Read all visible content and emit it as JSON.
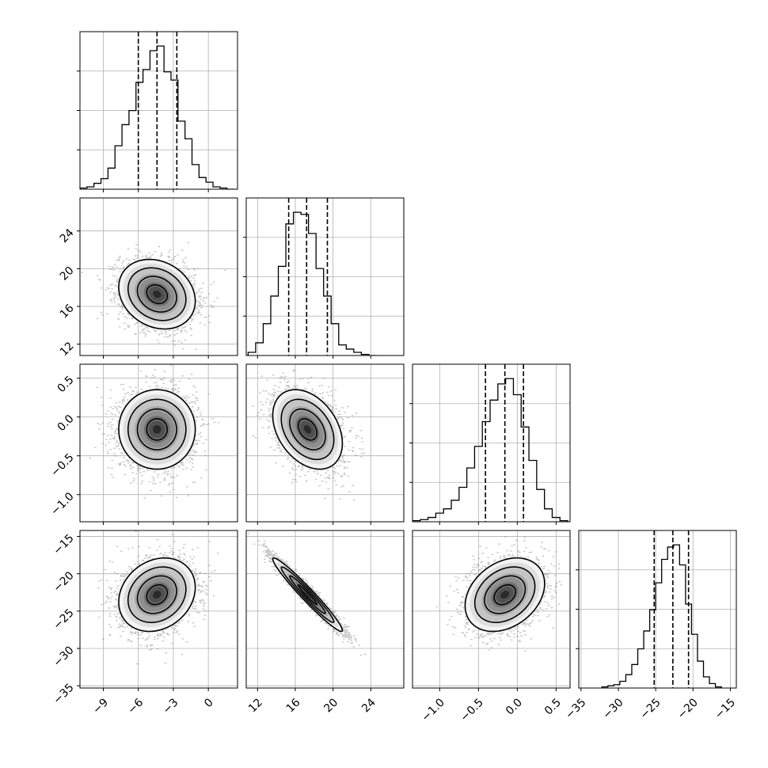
{
  "chart_data": {
    "type": "corner",
    "dims": 4,
    "grid": true,
    "axes": [
      {
        "range": [
          -11,
          2.5
        ],
        "ticks": [
          -9,
          -6,
          -3,
          0
        ],
        "tick_labels": [
          "−9",
          "−6",
          "−3",
          "0"
        ]
      },
      {
        "range": [
          10.8,
          27.5
        ],
        "ticks": [
          12,
          16,
          20,
          24
        ],
        "tick_labels": [
          "12",
          "16",
          "20",
          "24"
        ]
      },
      {
        "range": [
          -1.35,
          0.68
        ],
        "ticks": [
          -1.0,
          -0.5,
          0.0,
          0.5
        ],
        "tick_labels": [
          "−1.0",
          "−0.5",
          "0.0",
          "0.5"
        ]
      },
      {
        "range": [
          -35.3,
          -14.2
        ],
        "ticks": [
          -35,
          -30,
          -25,
          -20,
          -15
        ],
        "tick_labels": [
          "−35",
          "−30",
          "−25",
          "−20",
          "−15"
        ]
      }
    ],
    "marginals": [
      {
        "quantiles": [
          -6.0,
          -4.4,
          -2.7
        ],
        "bin_edges": [
          -11,
          -10.4,
          -9.8,
          -9.2,
          -8.6,
          -8.0,
          -7.4,
          -6.8,
          -6.2,
          -5.6,
          -5.0,
          -4.4,
          -3.8,
          -3.2,
          -2.6,
          -2.0,
          -1.4,
          -0.8,
          -0.2,
          0.4,
          1.0,
          1.6,
          2.2
        ],
        "counts": [
          1,
          2,
          5,
          9,
          18,
          37,
          55,
          67,
          91,
          102,
          118,
          122,
          100,
          93,
          58,
          43,
          21,
          10,
          6,
          2,
          1,
          0
        ]
      },
      {
        "quantiles": [
          15.3,
          17.2,
          19.4
        ],
        "bin_edges": [
          11.0,
          11.8,
          12.6,
          13.4,
          14.2,
          15.0,
          15.8,
          16.6,
          17.4,
          18.2,
          19.0,
          19.8,
          20.6,
          21.4,
          22.2,
          23.0,
          23.8,
          24.6
        ],
        "counts": [
          3,
          12,
          30,
          56,
          84,
          124,
          135,
          133,
          115,
          82,
          56,
          30,
          10,
          6,
          3,
          1,
          0
        ]
      },
      {
        "quantiles": [
          -0.41,
          -0.16,
          0.08
        ],
        "bin_edges": [
          -1.35,
          -1.25,
          -1.15,
          -1.05,
          -0.95,
          -0.85,
          -0.75,
          -0.65,
          -0.55,
          -0.45,
          -0.35,
          -0.25,
          -0.15,
          -0.05,
          0.05,
          0.15,
          0.25,
          0.35,
          0.45,
          0.55,
          0.65
        ],
        "counts": [
          1,
          2,
          4,
          8,
          12,
          20,
          32,
          50,
          70,
          93,
          113,
          128,
          133,
          118,
          88,
          57,
          30,
          12,
          4,
          1
        ]
      },
      {
        "quantiles": [
          -25.2,
          -22.7,
          -20.6
        ],
        "bin_edges": [
          -32.2,
          -31.4,
          -30.6,
          -29.8,
          -29.0,
          -28.2,
          -27.4,
          -26.6,
          -25.8,
          -25.0,
          -24.2,
          -23.4,
          -22.6,
          -21.8,
          -21.0,
          -20.2,
          -19.4,
          -18.6,
          -17.8,
          -17.0,
          -16.2
        ],
        "counts": [
          1,
          2,
          3,
          6,
          12,
          21,
          35,
          51,
          70,
          94,
          115,
          126,
          128,
          110,
          75,
          48,
          24,
          10,
          4,
          1
        ]
      }
    ],
    "pairs": [
      {
        "row": 1,
        "col": 0,
        "mean": [
          -4.4,
          17.3
        ],
        "sd": [
          1.6,
          1.8
        ],
        "rho": -0.2
      },
      {
        "row": 2,
        "col": 0,
        "mean": [
          -4.4,
          -0.16
        ],
        "sd": [
          1.6,
          0.25
        ],
        "rho": 0.0
      },
      {
        "row": 2,
        "col": 1,
        "mean": [
          17.3,
          -0.16
        ],
        "sd": [
          1.8,
          0.25
        ],
        "rho": -0.35
      },
      {
        "row": 3,
        "col": 0,
        "mean": [
          -4.4,
          -22.8
        ],
        "sd": [
          1.6,
          2.4
        ],
        "rho": 0.2
      },
      {
        "row": 3,
        "col": 1,
        "mean": [
          17.3,
          -22.8
        ],
        "sd": [
          1.8,
          2.4
        ],
        "rho": -0.97
      },
      {
        "row": 3,
        "col": 2,
        "mean": [
          -0.16,
          -22.8
        ],
        "sd": [
          0.25,
          2.4
        ],
        "rho": 0.3
      }
    ],
    "contour_levels_sigma": [
      0.5,
      1.0,
      1.5,
      2.0
    ],
    "colors": {
      "line": "#000000",
      "grid": "#b0b0b0",
      "points": "#808080",
      "frame": "#000000"
    }
  }
}
